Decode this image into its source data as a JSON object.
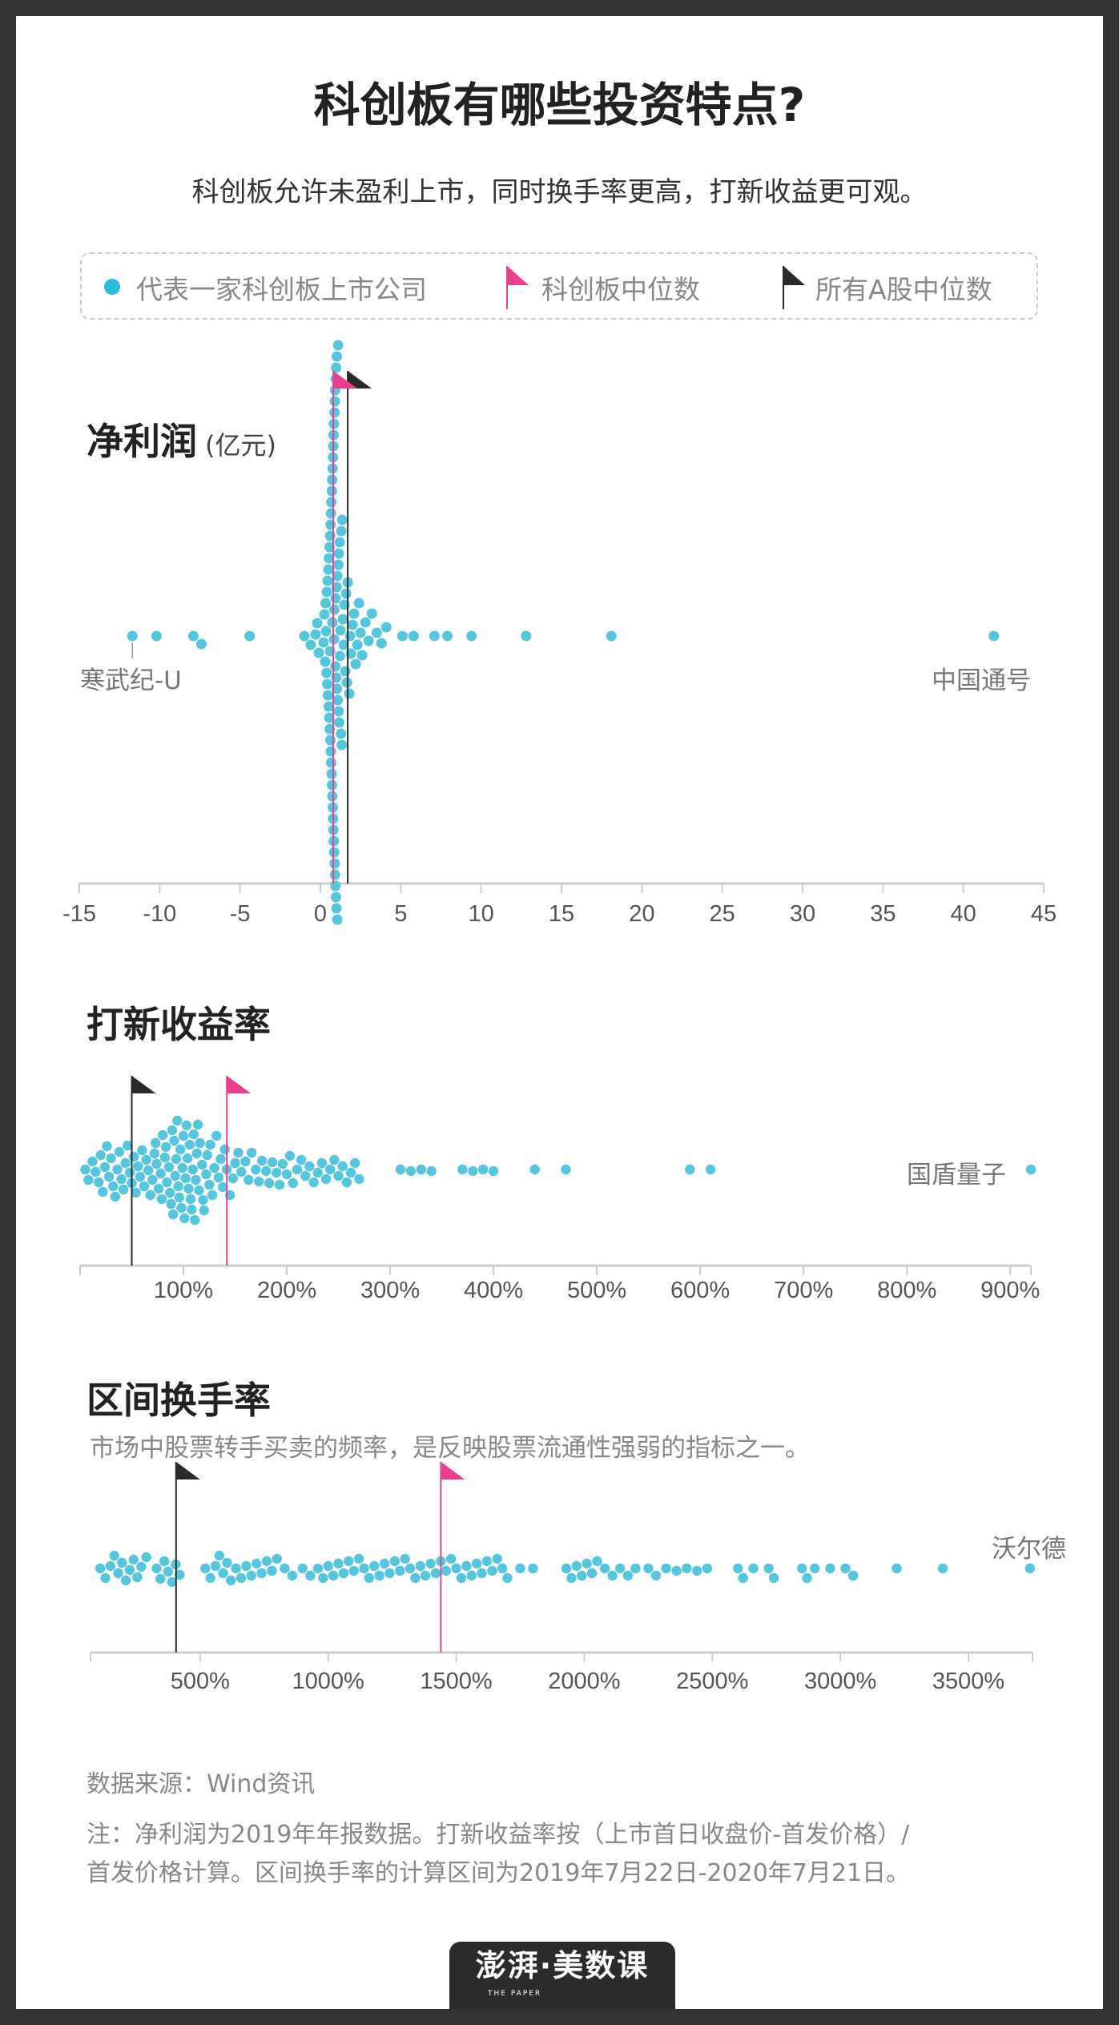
{
  "title": "科创板有哪些投资特点?",
  "subtitle": "科创板允许未盈利上市，同时换手率更高，打新收益更可观。",
  "legend": {
    "company": "代表一家科创板上市公司",
    "star_median": "科创板中位数",
    "all_median": "所有A股中位数"
  },
  "colors": {
    "dot": "#56c6df",
    "star_median": "#e8408f",
    "all_median": "#2a2a2a",
    "axis": "#cccccc",
    "frame": "#333333"
  },
  "chart_data": [
    {
      "type": "scatter",
      "title": "净利润",
      "unit": "(亿元)",
      "xlim": [
        -15,
        45
      ],
      "ticks": [
        "-15",
        "-10",
        "-5",
        "0",
        "5",
        "10",
        "15",
        "20",
        "25",
        "30",
        "35",
        "40",
        "45"
      ],
      "tick_values": [
        -15,
        -10,
        -5,
        0,
        5,
        10,
        15,
        20,
        25,
        30,
        35,
        40,
        45
      ],
      "star_median": 0.8,
      "all_median": 1.7,
      "annotations": [
        {
          "text": "寒武纪-U",
          "value": -11.7
        },
        {
          "text": "中国通号",
          "value": 41.9
        }
      ],
      "values": [
        -11.7,
        -10.2,
        -7.9,
        -7.4,
        -4.4,
        -1.0,
        -0.6,
        -0.3,
        -0.2,
        -0.1,
        0.2,
        0.25,
        0.3,
        0.32,
        0.35,
        0.38,
        0.4,
        0.42,
        0.45,
        0.47,
        0.5,
        0.52,
        0.53,
        0.55,
        0.57,
        0.58,
        0.6,
        0.61,
        0.62,
        0.63,
        0.65,
        0.66,
        0.67,
        0.68,
        0.7,
        0.71,
        0.72,
        0.73,
        0.74,
        0.75,
        0.76,
        0.77,
        0.78,
        0.79,
        0.8,
        0.81,
        0.82,
        0.83,
        0.84,
        0.85,
        0.86,
        0.87,
        0.88,
        0.89,
        0.9,
        0.91,
        0.92,
        0.93,
        0.94,
        0.95,
        0.96,
        0.97,
        0.98,
        0.99,
        1.0,
        1.01,
        1.02,
        1.03,
        1.05,
        1.06,
        1.08,
        1.1,
        1.12,
        1.14,
        1.15,
        1.17,
        1.2,
        1.22,
        1.25,
        1.28,
        1.3,
        1.33,
        1.35,
        1.4,
        1.45,
        1.5,
        1.55,
        1.6,
        1.65,
        1.7,
        1.8,
        1.85,
        1.9,
        2.0,
        2.1,
        2.2,
        2.3,
        2.4,
        2.5,
        2.6,
        2.8,
        3.0,
        3.2,
        3.5,
        3.8,
        4.1,
        5.1,
        5.8,
        7.1,
        7.9,
        9.4,
        12.8,
        18.1,
        41.9
      ]
    },
    {
      "type": "scatter",
      "title": "打新收益率",
      "xlim": [
        0,
        920
      ],
      "ticks": [
        "100%",
        "200%",
        "300%",
        "400%",
        "500%",
        "600%",
        "700%",
        "800%",
        "900%"
      ],
      "tick_values": [
        100,
        200,
        300,
        400,
        500,
        600,
        700,
        800,
        900
      ],
      "star_median": 142,
      "all_median": 50,
      "annotations": [
        {
          "text": "国盾量子",
          "value": 920
        }
      ],
      "values": [
        5,
        8,
        12,
        15,
        18,
        20,
        22,
        24,
        26,
        28,
        30,
        32,
        34,
        36,
        38,
        40,
        42,
        44,
        46,
        48,
        50,
        52,
        54,
        56,
        58,
        60,
        62,
        64,
        66,
        68,
        70,
        72,
        73,
        74,
        76,
        78,
        79,
        80,
        82,
        83,
        84,
        86,
        87,
        88,
        89,
        90,
        91,
        92,
        93,
        94,
        95,
        96,
        97,
        98,
        99,
        100,
        101,
        102,
        103,
        104,
        105,
        106,
        107,
        108,
        109,
        110,
        111,
        112,
        113,
        114,
        115,
        116,
        118,
        119,
        120,
        122,
        123,
        125,
        126,
        128,
        130,
        132,
        134,
        136,
        138,
        140,
        142,
        145,
        148,
        150,
        153,
        156,
        160,
        163,
        166,
        170,
        173,
        176,
        180,
        183,
        186,
        190,
        193,
        196,
        200,
        203,
        206,
        210,
        214,
        218,
        222,
        226,
        230,
        234,
        238,
        242,
        246,
        250,
        254,
        258,
        262,
        266,
        270,
        310,
        320,
        330,
        340,
        370,
        380,
        390,
        400,
        440,
        470,
        590,
        610,
        920
      ]
    },
    {
      "type": "scatter",
      "title": "区间换手率",
      "subtitle": "市场中股票转手买卖的频率，是反映股票流通性强弱的指标之一。",
      "xlim": [
        72,
        3750
      ],
      "ticks": [
        "500%",
        "1000%",
        "1500%",
        "2000%",
        "2500%",
        "3000%",
        "3500%"
      ],
      "tick_values": [
        500,
        1000,
        1500,
        2000,
        2500,
        3000,
        3500
      ],
      "star_median": 1440,
      "all_median": 406,
      "annotations": [
        {
          "text": "沃尔德",
          "value": 3740
        }
      ],
      "values": [
        110,
        130,
        150,
        165,
        180,
        195,
        210,
        225,
        240,
        255,
        270,
        290,
        330,
        345,
        360,
        375,
        390,
        405,
        420,
        520,
        540,
        560,
        575,
        590,
        605,
        620,
        640,
        660,
        680,
        700,
        720,
        740,
        760,
        780,
        800,
        830,
        860,
        900,
        930,
        960,
        980,
        1000,
        1020,
        1040,
        1060,
        1080,
        1100,
        1120,
        1140,
        1160,
        1180,
        1200,
        1220,
        1240,
        1260,
        1280,
        1300,
        1320,
        1340,
        1360,
        1380,
        1400,
        1420,
        1440,
        1460,
        1480,
        1500,
        1520,
        1540,
        1560,
        1580,
        1600,
        1620,
        1640,
        1660,
        1680,
        1700,
        1750,
        1800,
        1930,
        1950,
        1970,
        1990,
        2010,
        2030,
        2050,
        2080,
        2110,
        2140,
        2170,
        2200,
        2250,
        2280,
        2320,
        2360,
        2400,
        2440,
        2480,
        2600,
        2620,
        2660,
        2720,
        2740,
        2850,
        2870,
        2900,
        2960,
        3020,
        3050,
        3220,
        3400,
        3740
      ]
    }
  ],
  "footer": {
    "source": "数据来源：Wind资讯",
    "note_line1": "注：净利润为2019年年报数据。打新收益率按（上市首日收盘价-首发价格）/",
    "note_line2": "首发价格计算。区间换手率的计算区间为2019年7月22日-2020年7月21日。"
  },
  "logo": {
    "main": "澎湃·美数课",
    "sub": "THE PAPER"
  }
}
